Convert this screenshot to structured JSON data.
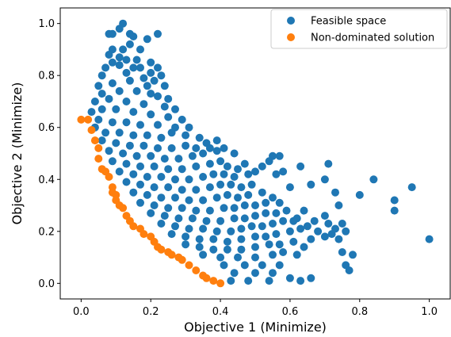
{
  "chart_data": {
    "type": "scatter",
    "xlabel": "Objective 1 (Minimize)",
    "ylabel": "Objective 2 (Minimize)",
    "xlim": [
      -0.06,
      1.06
    ],
    "ylim": [
      -0.06,
      1.06
    ],
    "xticks": [
      "0.0",
      "0.2",
      "0.4",
      "0.6",
      "0.8",
      "1.0"
    ],
    "yticks": [
      "0.0",
      "0.2",
      "0.4",
      "0.6",
      "0.8",
      "1.0"
    ],
    "grid": false,
    "legend_position": "top-right",
    "series": [
      {
        "name": "Feasible space",
        "color": "#1f77b4",
        "points": [
          [
            0.12,
            1.0
          ],
          [
            0.11,
            0.98
          ],
          [
            0.14,
            0.96
          ],
          [
            0.08,
            0.96
          ],
          [
            0.09,
            0.96
          ],
          [
            0.15,
            0.95
          ],
          [
            0.22,
            0.96
          ],
          [
            0.19,
            0.94
          ],
          [
            0.14,
            0.92
          ],
          [
            0.09,
            0.9
          ],
          [
            0.12,
            0.9
          ],
          [
            0.17,
            0.9
          ],
          [
            0.08,
            0.88
          ],
          [
            0.11,
            0.87
          ],
          [
            0.13,
            0.86
          ],
          [
            0.16,
            0.86
          ],
          [
            0.09,
            0.85
          ],
          [
            0.07,
            0.83
          ],
          [
            0.11,
            0.84
          ],
          [
            0.15,
            0.83
          ],
          [
            0.17,
            0.83
          ],
          [
            0.2,
            0.85
          ],
          [
            0.2,
            0.81
          ],
          [
            0.22,
            0.83
          ],
          [
            0.06,
            0.8
          ],
          [
            0.13,
            0.81
          ],
          [
            0.18,
            0.79
          ],
          [
            0.21,
            0.78
          ],
          [
            0.23,
            0.8
          ],
          [
            0.05,
            0.76
          ],
          [
            0.09,
            0.77
          ],
          [
            0.14,
            0.78
          ],
          [
            0.19,
            0.76
          ],
          [
            0.24,
            0.76
          ],
          [
            0.2,
            0.73
          ],
          [
            0.06,
            0.73
          ],
          [
            0.11,
            0.74
          ],
          [
            0.16,
            0.74
          ],
          [
            0.22,
            0.72
          ],
          [
            0.25,
            0.71
          ],
          [
            0.24,
            0.68
          ],
          [
            0.04,
            0.7
          ],
          [
            0.08,
            0.71
          ],
          [
            0.13,
            0.7
          ],
          [
            0.18,
            0.69
          ],
          [
            0.27,
            0.67
          ],
          [
            0.03,
            0.66
          ],
          [
            0.06,
            0.67
          ],
          [
            0.1,
            0.67
          ],
          [
            0.15,
            0.66
          ],
          [
            0.2,
            0.65
          ],
          [
            0.25,
            0.64
          ],
          [
            0.29,
            0.63
          ],
          [
            0.05,
            0.63
          ],
          [
            0.09,
            0.62
          ],
          [
            0.13,
            0.62
          ],
          [
            0.17,
            0.61
          ],
          [
            0.22,
            0.61
          ],
          [
            0.27,
            0.6
          ],
          [
            0.31,
            0.6
          ],
          [
            0.26,
            0.58
          ],
          [
            0.3,
            0.57
          ],
          [
            0.34,
            0.56
          ],
          [
            0.04,
            0.6
          ],
          [
            0.07,
            0.58
          ],
          [
            0.11,
            0.58
          ],
          [
            0.15,
            0.57
          ],
          [
            0.19,
            0.57
          ],
          [
            0.23,
            0.56
          ],
          [
            0.06,
            0.55
          ],
          [
            0.1,
            0.54
          ],
          [
            0.14,
            0.53
          ],
          [
            0.18,
            0.53
          ],
          [
            0.22,
            0.52
          ],
          [
            0.26,
            0.52
          ],
          [
            0.3,
            0.53
          ],
          [
            0.33,
            0.52
          ],
          [
            0.36,
            0.54
          ],
          [
            0.39,
            0.55
          ],
          [
            0.37,
            0.52
          ],
          [
            0.08,
            0.51
          ],
          [
            0.12,
            0.5
          ],
          [
            0.16,
            0.49
          ],
          [
            0.2,
            0.49
          ],
          [
            0.24,
            0.48
          ],
          [
            0.28,
            0.48
          ],
          [
            0.32,
            0.49
          ],
          [
            0.35,
            0.5
          ],
          [
            0.39,
            0.51
          ],
          [
            0.41,
            0.52
          ],
          [
            0.44,
            0.5
          ],
          [
            0.09,
            0.47
          ],
          [
            0.13,
            0.46
          ],
          [
            0.17,
            0.45
          ],
          [
            0.21,
            0.45
          ],
          [
            0.25,
            0.44
          ],
          [
            0.29,
            0.44
          ],
          [
            0.33,
            0.45
          ],
          [
            0.37,
            0.46
          ],
          [
            0.4,
            0.47
          ],
          [
            0.42,
            0.45
          ],
          [
            0.45,
            0.44
          ],
          [
            0.47,
            0.46
          ],
          [
            0.11,
            0.43
          ],
          [
            0.15,
            0.42
          ],
          [
            0.19,
            0.41
          ],
          [
            0.23,
            0.41
          ],
          [
            0.27,
            0.4
          ],
          [
            0.31,
            0.4
          ],
          [
            0.35,
            0.41
          ],
          [
            0.38,
            0.42
          ],
          [
            0.41,
            0.42
          ],
          [
            0.44,
            0.41
          ],
          [
            0.48,
            0.42
          ],
          [
            0.5,
            0.43
          ],
          [
            0.13,
            0.39
          ],
          [
            0.17,
            0.38
          ],
          [
            0.21,
            0.37
          ],
          [
            0.25,
            0.37
          ],
          [
            0.29,
            0.36
          ],
          [
            0.33,
            0.36
          ],
          [
            0.37,
            0.37
          ],
          [
            0.4,
            0.38
          ],
          [
            0.43,
            0.38
          ],
          [
            0.46,
            0.37
          ],
          [
            0.49,
            0.38
          ],
          [
            0.15,
            0.35
          ],
          [
            0.19,
            0.34
          ],
          [
            0.23,
            0.33
          ],
          [
            0.27,
            0.33
          ],
          [
            0.31,
            0.32
          ],
          [
            0.35,
            0.32
          ],
          [
            0.39,
            0.33
          ],
          [
            0.42,
            0.34
          ],
          [
            0.45,
            0.33
          ],
          [
            0.48,
            0.34
          ],
          [
            0.52,
            0.35
          ],
          [
            0.55,
            0.33
          ],
          [
            0.17,
            0.31
          ],
          [
            0.21,
            0.3
          ],
          [
            0.25,
            0.29
          ],
          [
            0.29,
            0.29
          ],
          [
            0.33,
            0.28
          ],
          [
            0.37,
            0.28
          ],
          [
            0.41,
            0.29
          ],
          [
            0.44,
            0.29
          ],
          [
            0.47,
            0.3
          ],
          [
            0.5,
            0.3
          ],
          [
            0.53,
            0.31
          ],
          [
            0.57,
            0.31
          ],
          [
            0.2,
            0.27
          ],
          [
            0.24,
            0.26
          ],
          [
            0.28,
            0.25
          ],
          [
            0.32,
            0.25
          ],
          [
            0.36,
            0.24
          ],
          [
            0.4,
            0.24
          ],
          [
            0.44,
            0.25
          ],
          [
            0.47,
            0.25
          ],
          [
            0.5,
            0.26
          ],
          [
            0.53,
            0.27
          ],
          [
            0.56,
            0.27
          ],
          [
            0.59,
            0.28
          ],
          [
            0.23,
            0.23
          ],
          [
            0.27,
            0.22
          ],
          [
            0.31,
            0.21
          ],
          [
            0.35,
            0.21
          ],
          [
            0.39,
            0.2
          ],
          [
            0.43,
            0.2
          ],
          [
            0.46,
            0.21
          ],
          [
            0.49,
            0.22
          ],
          [
            0.52,
            0.22
          ],
          [
            0.55,
            0.23
          ],
          [
            0.58,
            0.24
          ],
          [
            0.61,
            0.24
          ],
          [
            0.26,
            0.19
          ],
          [
            0.3,
            0.18
          ],
          [
            0.34,
            0.17
          ],
          [
            0.38,
            0.17
          ],
          [
            0.42,
            0.16
          ],
          [
            0.46,
            0.17
          ],
          [
            0.5,
            0.18
          ],
          [
            0.53,
            0.18
          ],
          [
            0.56,
            0.19
          ],
          [
            0.6,
            0.2
          ],
          [
            0.63,
            0.21
          ],
          [
            0.3,
            0.15
          ],
          [
            0.34,
            0.14
          ],
          [
            0.38,
            0.13
          ],
          [
            0.42,
            0.13
          ],
          [
            0.46,
            0.13
          ],
          [
            0.5,
            0.14
          ],
          [
            0.54,
            0.15
          ],
          [
            0.57,
            0.15
          ],
          [
            0.61,
            0.16
          ],
          [
            0.35,
            0.11
          ],
          [
            0.4,
            0.1
          ],
          [
            0.45,
            0.1
          ],
          [
            0.5,
            0.1
          ],
          [
            0.55,
            0.11
          ],
          [
            0.58,
            0.12
          ],
          [
            0.41,
            0.07
          ],
          [
            0.47,
            0.07
          ],
          [
            0.52,
            0.07
          ],
          [
            0.57,
            0.07
          ],
          [
            0.44,
            0.04
          ],
          [
            0.5,
            0.04
          ],
          [
            0.55,
            0.04
          ],
          [
            0.48,
            0.01
          ],
          [
            0.54,
            0.01
          ],
          [
            0.6,
            0.02
          ],
          [
            0.63,
            0.01
          ],
          [
            0.43,
            0.01
          ],
          [
            0.66,
            0.02
          ],
          [
            0.62,
            0.11
          ],
          [
            0.64,
            0.14
          ],
          [
            0.66,
            0.17
          ],
          [
            0.68,
            0.2
          ],
          [
            0.65,
            0.22
          ],
          [
            0.62,
            0.25
          ],
          [
            0.64,
            0.28
          ],
          [
            0.67,
            0.24
          ],
          [
            0.7,
            0.26
          ],
          [
            0.71,
            0.23
          ],
          [
            0.72,
            0.19
          ],
          [
            0.7,
            0.18
          ],
          [
            0.73,
            0.21
          ],
          [
            0.75,
            0.23
          ],
          [
            0.74,
            0.17
          ],
          [
            0.76,
            0.2
          ],
          [
            0.75,
            0.12
          ],
          [
            0.78,
            0.11
          ],
          [
            0.76,
            0.07
          ],
          [
            0.77,
            0.05
          ],
          [
            0.8,
            0.34
          ],
          [
            0.84,
            0.4
          ],
          [
            0.9,
            0.32
          ],
          [
            0.9,
            0.28
          ],
          [
            0.95,
            0.37
          ],
          [
            1.0,
            0.17
          ],
          [
            0.71,
            0.46
          ],
          [
            0.7,
            0.4
          ],
          [
            0.73,
            0.35
          ],
          [
            0.74,
            0.3
          ],
          [
            0.66,
            0.38
          ],
          [
            0.63,
            0.45
          ],
          [
            0.57,
            0.49
          ],
          [
            0.55,
            0.49
          ],
          [
            0.58,
            0.43
          ],
          [
            0.6,
            0.37
          ],
          [
            0.56,
            0.42
          ],
          [
            0.54,
            0.47
          ],
          [
            0.52,
            0.45
          ]
        ]
      },
      {
        "name": "Non-dominated solution",
        "color": "#ff7f0e",
        "points": [
          [
            0.0,
            0.63
          ],
          [
            0.02,
            0.63
          ],
          [
            0.03,
            0.59
          ],
          [
            0.04,
            0.55
          ],
          [
            0.05,
            0.52
          ],
          [
            0.05,
            0.48
          ],
          [
            0.06,
            0.44
          ],
          [
            0.07,
            0.43
          ],
          [
            0.08,
            0.41
          ],
          [
            0.09,
            0.37
          ],
          [
            0.09,
            0.35
          ],
          [
            0.1,
            0.34
          ],
          [
            0.1,
            0.32
          ],
          [
            0.11,
            0.3
          ],
          [
            0.12,
            0.29
          ],
          [
            0.13,
            0.26
          ],
          [
            0.14,
            0.24
          ],
          [
            0.15,
            0.22
          ],
          [
            0.17,
            0.21
          ],
          [
            0.18,
            0.19
          ],
          [
            0.2,
            0.18
          ],
          [
            0.21,
            0.16
          ],
          [
            0.22,
            0.14
          ],
          [
            0.23,
            0.13
          ],
          [
            0.25,
            0.12
          ],
          [
            0.26,
            0.11
          ],
          [
            0.28,
            0.1
          ],
          [
            0.29,
            0.09
          ],
          [
            0.31,
            0.07
          ],
          [
            0.33,
            0.05
          ],
          [
            0.35,
            0.03
          ],
          [
            0.36,
            0.02
          ],
          [
            0.38,
            0.01
          ],
          [
            0.4,
            0.0
          ]
        ]
      }
    ]
  }
}
